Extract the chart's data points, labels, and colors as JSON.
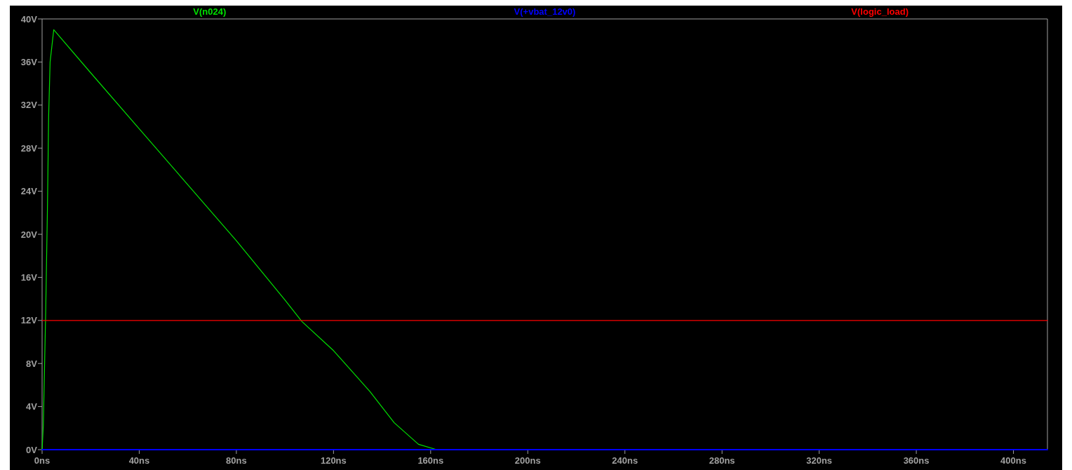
{
  "chart_data": {
    "type": "line",
    "legend": "top",
    "grid": false,
    "marker": "none",
    "line_style": "solid",
    "xlim": [
      0,
      414
    ],
    "ylim": [
      0,
      40
    ],
    "xticks": [
      {
        "value": 0,
        "label": "0ns"
      },
      {
        "value": 40,
        "label": "40ns"
      },
      {
        "value": 80,
        "label": "80ns"
      },
      {
        "value": 120,
        "label": "120ns"
      },
      {
        "value": 160,
        "label": "160ns"
      },
      {
        "value": 200,
        "label": "200ns"
      },
      {
        "value": 240,
        "label": "240ns"
      },
      {
        "value": 280,
        "label": "280ns"
      },
      {
        "value": 320,
        "label": "320ns"
      },
      {
        "value": 360,
        "label": "360ns"
      },
      {
        "value": 400,
        "label": "400ns"
      }
    ],
    "yticks": [
      {
        "value": 0,
        "label": "0V"
      },
      {
        "value": 4,
        "label": "4V"
      },
      {
        "value": 8,
        "label": "8V"
      },
      {
        "value": 12,
        "label": "12V"
      },
      {
        "value": 16,
        "label": "16V"
      },
      {
        "value": 20,
        "label": "20V"
      },
      {
        "value": 24,
        "label": "24V"
      },
      {
        "value": 28,
        "label": "28V"
      },
      {
        "value": 32,
        "label": "32V"
      },
      {
        "value": 36,
        "label": "36V"
      },
      {
        "value": 40,
        "label": "40V"
      }
    ],
    "series": [
      {
        "name": "V(n024)",
        "color": "#00e000",
        "x": [
          0,
          0.5,
          1.5,
          2.2,
          2.7,
          3.3,
          4.8,
          20,
          40,
          60,
          80,
          100,
          107,
          120,
          135,
          145,
          155,
          162.5
        ],
        "values": [
          0,
          2.2,
          13,
          22.4,
          31,
          36,
          39,
          35,
          29.8,
          24.6,
          19.4,
          13.9,
          11.9,
          9.2,
          5.4,
          2.5,
          0.5,
          0
        ]
      },
      {
        "name": "V(+vbat_12v0)",
        "color": "#0000ff",
        "x": [
          0,
          414
        ],
        "values": [
          0,
          0
        ]
      },
      {
        "name": "V(logic_load)",
        "color": "#ff0000",
        "x": [
          0,
          414
        ],
        "values": [
          12,
          12
        ]
      }
    ]
  }
}
